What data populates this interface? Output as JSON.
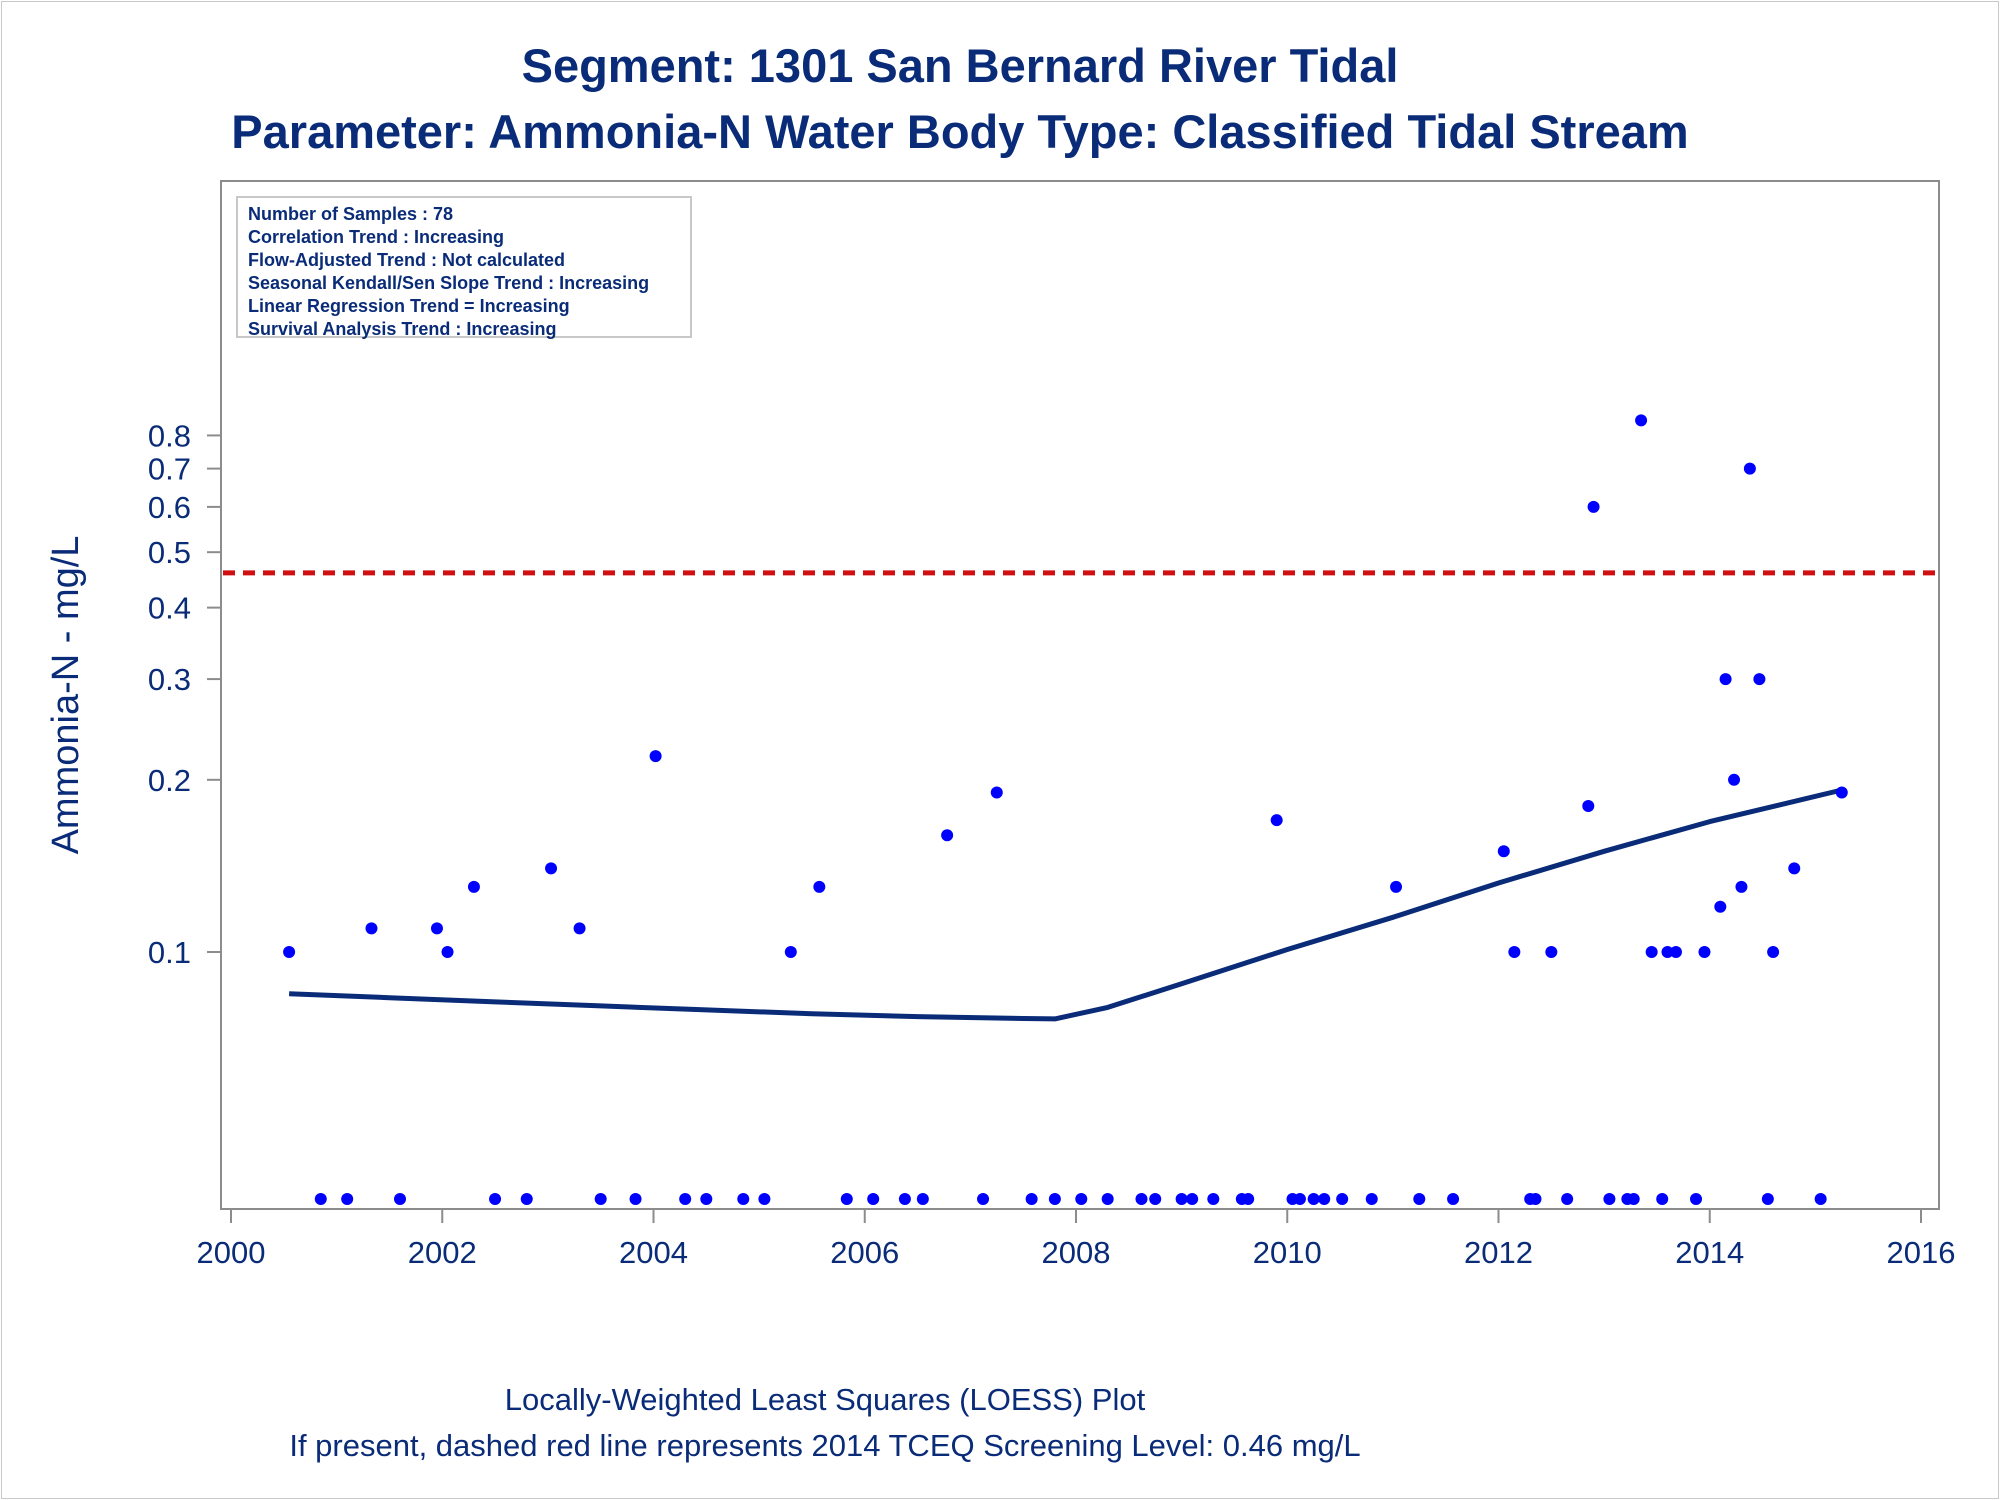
{
  "title": "Segment: 1301  San Bernard River Tidal",
  "subtitle": "Parameter: Ammonia-N   Water Body Type: Classified Tidal Stream",
  "footnote": [
    "Locally-Weighted Least Squares (LOESS) Plot",
    "If present, dashed red line represents 2014 TCEQ Screening Level: 0.46 mg/L"
  ],
  "stats_box": [
    "Number of Samples : 78",
    "Correlation Trend : Increasing",
    "Flow-Adjusted Trend : Not calculated",
    "Seasonal Kendall/Sen Slope Trend : Increasing",
    "Linear Regression Trend = Increasing",
    "Survival Analysis Trend : Increasing"
  ],
  "colors": {
    "text": "#0a2c78",
    "points": "#0000ff",
    "loess": "#0a2c78",
    "screening": "#d01010",
    "axis": "#8c8c8c"
  },
  "chart_data": {
    "type": "scatter",
    "ylabel": "Ammonia-N - mg/L",
    "xlabel": "",
    "y_scale": "log",
    "xlim": [
      2000,
      2016
    ],
    "ylim": [
      0.04,
      0.87
    ],
    "x_ticks": [
      "2000",
      "2002",
      "2004",
      "2006",
      "2008",
      "2010",
      "2012",
      "2014",
      "2016"
    ],
    "y_ticks": [
      "0.1",
      "0.2",
      "0.3",
      "0.4",
      "0.5",
      "0.6",
      "0.7",
      "0.8"
    ],
    "screening_level": 0.46,
    "points": [
      [
        2000.55,
        0.1
      ],
      [
        2001.33,
        0.11
      ],
      [
        2001.95,
        0.11
      ],
      [
        2002.05,
        0.1
      ],
      [
        2002.3,
        0.13
      ],
      [
        2003.03,
        0.14
      ],
      [
        2003.3,
        0.11
      ],
      [
        2004.02,
        0.22
      ],
      [
        2005.3,
        0.1
      ],
      [
        2005.57,
        0.13
      ],
      [
        2006.78,
        0.16
      ],
      [
        2007.25,
        0.19
      ],
      [
        2009.9,
        0.17
      ],
      [
        2011.03,
        0.13
      ],
      [
        2012.05,
        0.15
      ],
      [
        2012.15,
        0.1
      ],
      [
        2012.5,
        0.1
      ],
      [
        2012.85,
        0.18
      ],
      [
        2012.9,
        0.6
      ],
      [
        2013.35,
        0.85
      ],
      [
        2013.45,
        0.1
      ],
      [
        2013.6,
        0.1
      ],
      [
        2013.68,
        0.1
      ],
      [
        2013.95,
        0.1
      ],
      [
        2014.1,
        0.12
      ],
      [
        2014.15,
        0.3
      ],
      [
        2014.23,
        0.2
      ],
      [
        2014.3,
        0.13
      ],
      [
        2014.38,
        0.7
      ],
      [
        2014.47,
        0.3
      ],
      [
        2014.6,
        0.1
      ],
      [
        2014.8,
        0.14
      ],
      [
        2015.25,
        0.19
      ]
    ],
    "below_detection_x": [
      2000.85,
      2001.1,
      2001.6,
      2002.5,
      2002.8,
      2003.5,
      2003.83,
      2004.3,
      2004.5,
      2004.85,
      2005.05,
      2005.83,
      2006.08,
      2006.38,
      2006.55,
      2007.12,
      2007.58,
      2007.8,
      2008.05,
      2008.3,
      2008.62,
      2008.75,
      2009.0,
      2009.1,
      2009.3,
      2009.57,
      2009.63,
      2010.05,
      2010.12,
      2010.25,
      2010.35,
      2010.52,
      2010.8,
      2011.25,
      2011.57,
      2012.3,
      2012.35,
      2012.65,
      2013.05,
      2013.22,
      2013.28,
      2013.55,
      2013.87,
      2014.55,
      2015.05
    ],
    "loess": [
      [
        2000.55,
        0.0845
      ],
      [
        2001.5,
        0.0832
      ],
      [
        2002.5,
        0.0818
      ],
      [
        2003.5,
        0.0805
      ],
      [
        2004.5,
        0.0792
      ],
      [
        2005.5,
        0.078
      ],
      [
        2006.5,
        0.0771
      ],
      [
        2007.5,
        0.0765
      ],
      [
        2007.8,
        0.0764
      ],
      [
        2008.3,
        0.08
      ],
      [
        2009.0,
        0.088
      ],
      [
        2010.0,
        0.101
      ],
      [
        2011.0,
        0.115
      ],
      [
        2012.0,
        0.132
      ],
      [
        2013.0,
        0.15
      ],
      [
        2014.0,
        0.169
      ],
      [
        2015.25,
        0.192
      ]
    ]
  }
}
